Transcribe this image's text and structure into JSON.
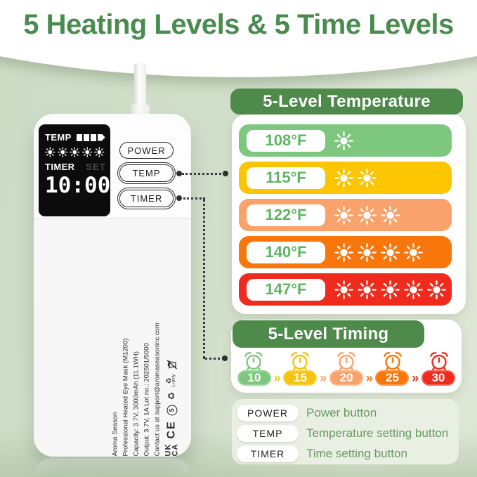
{
  "title": "5 Heating Levels & 5 Time Levels",
  "accent_green": "#4e8b4b",
  "device": {
    "display": {
      "temp_label": "TEMP",
      "temp_level_bars": 4,
      "sun_level": 5,
      "timer_label": "TIMER",
      "set_label": "SET",
      "time_value": "10:00"
    },
    "buttons": {
      "power": "POWER",
      "temp": "TEMP",
      "timer": "TIMER"
    },
    "side_text": {
      "line1": "Aroma Season",
      "line2": "Professional Heated Eye Mask (M1200)",
      "line3": "Capacity: 3.7V, 3000mAh (11.1WH)",
      "line4": "Output: 3.7V, 1A      Lot no.: 202501/5000",
      "line5": "Contact us at support@aromaseasoninc.com"
    },
    "marks": {
      "ukca_top": "UK",
      "ukca_bottom": "CA",
      "ce": "CE",
      "circled_number": "5",
      "recycle_symbol": "♻",
      "li_poly": "Li-poly"
    }
  },
  "temperature_panel": {
    "title": "5-Level Temperature",
    "label_color": "#5cb661",
    "rows": [
      {
        "label": "108°F",
        "suns": 1,
        "color": "#7dc87e"
      },
      {
        "label": "115°F",
        "suns": 2,
        "color": "#fbc502"
      },
      {
        "label": "122°F",
        "suns": 3,
        "color": "#f9a26b"
      },
      {
        "label": "140°F",
        "suns": 4,
        "color": "#f8760a"
      },
      {
        "label": "147°F",
        "suns": 5,
        "color": "#ee2b1c"
      }
    ]
  },
  "timing_panel": {
    "title": "5-Level Timing",
    "separator": "»",
    "levels": [
      {
        "minutes": "10",
        "color": "#7dc87e"
      },
      {
        "minutes": "15",
        "color": "#f5c411"
      },
      {
        "minutes": "20",
        "color": "#f9a26b"
      },
      {
        "minutes": "25",
        "color": "#f8760a"
      },
      {
        "minutes": "30",
        "color": "#ee2b1c"
      }
    ]
  },
  "legend": {
    "items": [
      {
        "button": "POWER",
        "description": "Power button"
      },
      {
        "button": "TEMP",
        "description": "Temperature setting button"
      },
      {
        "button": "TIMER",
        "description": "Time setting button"
      }
    ]
  }
}
